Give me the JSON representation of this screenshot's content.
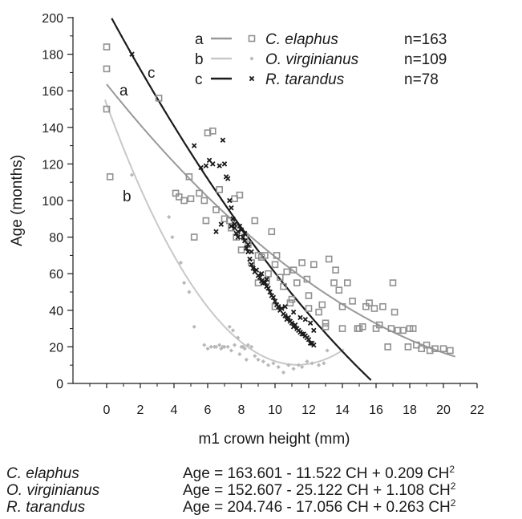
{
  "chart_data": {
    "type": "scatter",
    "xlabel": "m1 crown height (mm)",
    "ylabel": "Age (months)",
    "xlim": [
      -2,
      22
    ],
    "ylim": [
      0,
      200
    ],
    "x_ticks": [
      "0",
      "2",
      "4",
      "6",
      "8",
      "10",
      "12",
      "14",
      "16",
      "18",
      "20",
      "22"
    ],
    "y_ticks": [
      "0",
      "20",
      "40",
      "60",
      "80",
      "100",
      "120",
      "140",
      "160",
      "180",
      "200"
    ],
    "legend_position": "top-right",
    "series": [
      {
        "key": "a",
        "name": "C. elaphus",
        "n": "n=163",
        "marker": "hollow-square",
        "line_color": "#999999",
        "marker_color": "#909090",
        "curve": {
          "intercept": 163.601,
          "b1": -11.522,
          "b2": 0.209,
          "x_range": [
            0,
            20.7
          ]
        },
        "points": [
          [
            0,
            184
          ],
          [
            0,
            172
          ],
          [
            0,
            150
          ],
          [
            0.2,
            113
          ],
          [
            3.1,
            156
          ],
          [
            4.1,
            104
          ],
          [
            4.3,
            102
          ],
          [
            4.6,
            100
          ],
          [
            4.9,
            113
          ],
          [
            5,
            101
          ],
          [
            5.2,
            80
          ],
          [
            5.5,
            104
          ],
          [
            5.8,
            100
          ],
          [
            5.9,
            89
          ],
          [
            6,
            137
          ],
          [
            6.3,
            138
          ],
          [
            6.5,
            95
          ],
          [
            6.7,
            106
          ],
          [
            7,
            90
          ],
          [
            7.3,
            89
          ],
          [
            7.4,
            85
          ],
          [
            7.6,
            101
          ],
          [
            7.7,
            80
          ],
          [
            7.9,
            103
          ],
          [
            8,
            73
          ],
          [
            8.2,
            80
          ],
          [
            8.4,
            76
          ],
          [
            8.6,
            66
          ],
          [
            8.8,
            89
          ],
          [
            9,
            70
          ],
          [
            9.2,
            69
          ],
          [
            9.4,
            70
          ],
          [
            9.5,
            56
          ],
          [
            9.6,
            60
          ],
          [
            9.8,
            83
          ],
          [
            10,
            65
          ],
          [
            10.1,
            70
          ],
          [
            10.3,
            58
          ],
          [
            10.5,
            53
          ],
          [
            10.7,
            61
          ],
          [
            10.9,
            44
          ],
          [
            11.1,
            62
          ],
          [
            11.3,
            55
          ],
          [
            11.6,
            66
          ],
          [
            11.9,
            57
          ],
          [
            12,
            48
          ],
          [
            12.3,
            65
          ],
          [
            12.6,
            39
          ],
          [
            12.8,
            43
          ],
          [
            13,
            33
          ],
          [
            13.2,
            68
          ],
          [
            13.5,
            55
          ],
          [
            13.6,
            62
          ],
          [
            13.8,
            51
          ],
          [
            14,
            42
          ],
          [
            14.3,
            55
          ],
          [
            14.6,
            45
          ],
          [
            14.9,
            30
          ],
          [
            15.2,
            31
          ],
          [
            15.4,
            42
          ],
          [
            15.6,
            44
          ],
          [
            15.9,
            41
          ],
          [
            16.2,
            32
          ],
          [
            16.4,
            42
          ],
          [
            16.7,
            20
          ],
          [
            16.9,
            30
          ],
          [
            17.1,
            39
          ],
          [
            17.3,
            29
          ],
          [
            17.6,
            29
          ],
          [
            17.9,
            20
          ],
          [
            18.2,
            30
          ],
          [
            18.4,
            21
          ],
          [
            18.7,
            19
          ],
          [
            19,
            21
          ],
          [
            19.2,
            18
          ],
          [
            19.5,
            19
          ],
          [
            20,
            19
          ],
          [
            20.4,
            18
          ],
          [
            17,
            55
          ],
          [
            18,
            30
          ],
          [
            16,
            30
          ],
          [
            15,
            30
          ],
          [
            14,
            30
          ],
          [
            13,
            31
          ],
          [
            12,
            41
          ],
          [
            11,
            46
          ],
          [
            10,
            42
          ],
          [
            9,
            55
          ]
        ]
      },
      {
        "key": "b",
        "name": "O. virginianus",
        "n": "n=109",
        "marker": "small-diamond",
        "line_color": "#c8c8c8",
        "marker_color": "#b8b8b8",
        "curve": {
          "intercept": 152.607,
          "b1": -25.122,
          "b2": 1.108,
          "x_range": [
            -0.1,
            14.1
          ]
        },
        "points": [
          [
            1.5,
            114
          ],
          [
            3.7,
            91
          ],
          [
            3.9,
            80
          ],
          [
            4.4,
            66
          ],
          [
            4.6,
            55
          ],
          [
            4.9,
            50
          ],
          [
            5.2,
            31
          ],
          [
            6.2,
            20
          ],
          [
            6.5,
            20
          ],
          [
            6.8,
            19
          ],
          [
            7,
            20
          ],
          [
            7.3,
            31
          ],
          [
            7.5,
            29
          ],
          [
            7.8,
            25
          ],
          [
            8,
            20
          ],
          [
            8.2,
            19
          ],
          [
            8.4,
            21
          ],
          [
            8.6,
            20
          ],
          [
            8.8,
            15
          ],
          [
            9,
            13
          ],
          [
            9.3,
            12
          ],
          [
            9.6,
            10
          ],
          [
            9.9,
            11
          ],
          [
            10.2,
            9
          ],
          [
            10.5,
            6
          ],
          [
            10.8,
            10
          ],
          [
            11.1,
            8
          ],
          [
            11.4,
            10
          ],
          [
            11.6,
            9
          ],
          [
            11.9,
            12
          ],
          [
            12.2,
            11
          ],
          [
            12.6,
            10
          ],
          [
            12.9,
            11
          ],
          [
            13.1,
            18
          ],
          [
            7.2,
            20
          ],
          [
            7.6,
            21
          ],
          [
            7.9,
            16
          ],
          [
            8.1,
            20
          ],
          [
            8.3,
            13
          ],
          [
            7.4,
            18
          ],
          [
            6.9,
            20
          ],
          [
            6.7,
            21
          ],
          [
            6.4,
            20
          ],
          [
            5.8,
            21
          ],
          [
            6,
            19
          ]
        ]
      },
      {
        "key": "c",
        "name": "R. tarandus",
        "n": "n=78",
        "marker": "x",
        "line_color": "#1a1a1a",
        "marker_color": "#1a1a1a",
        "curve": {
          "intercept": 204.746,
          "b1": -17.056,
          "b2": 0.263,
          "x_range": [
            0.3,
            15.7
          ]
        },
        "points": [
          [
            1.5,
            180
          ],
          [
            5.2,
            130
          ],
          [
            5.6,
            118
          ],
          [
            5.9,
            119
          ],
          [
            6.1,
            122
          ],
          [
            6.3,
            120
          ],
          [
            6.7,
            119
          ],
          [
            6.9,
            133
          ],
          [
            7,
            120
          ],
          [
            7.1,
            113
          ],
          [
            7.2,
            112
          ],
          [
            7.3,
            100
          ],
          [
            7.4,
            96
          ],
          [
            7.5,
            90
          ],
          [
            7.6,
            87
          ],
          [
            7.7,
            82
          ],
          [
            7.8,
            83
          ],
          [
            7.9,
            86
          ],
          [
            8,
            84
          ],
          [
            8.1,
            80
          ],
          [
            8.2,
            78
          ],
          [
            8.3,
            74
          ],
          [
            8.4,
            72
          ],
          [
            8.5,
            68
          ],
          [
            8.6,
            65
          ],
          [
            8.7,
            63
          ],
          [
            8.8,
            61
          ],
          [
            8.9,
            62
          ],
          [
            9,
            59
          ],
          [
            9.1,
            58
          ],
          [
            9.2,
            56
          ],
          [
            9.3,
            55
          ],
          [
            9.4,
            55
          ],
          [
            9.5,
            53
          ],
          [
            9.6,
            52
          ],
          [
            9.7,
            50
          ],
          [
            9.8,
            48
          ],
          [
            9.9,
            47
          ],
          [
            10,
            45
          ],
          [
            10.1,
            43
          ],
          [
            10.2,
            42
          ],
          [
            10.3,
            40
          ],
          [
            10.4,
            41
          ],
          [
            10.5,
            38
          ],
          [
            10.6,
            37
          ],
          [
            10.7,
            35
          ],
          [
            10.8,
            36
          ],
          [
            10.9,
            34
          ],
          [
            11,
            33
          ],
          [
            11.1,
            31
          ],
          [
            11.2,
            32
          ],
          [
            11.3,
            30
          ],
          [
            11.4,
            29
          ],
          [
            11.5,
            28
          ],
          [
            11.6,
            27
          ],
          [
            11.7,
            27
          ],
          [
            11.8,
            26
          ],
          [
            11.9,
            25
          ],
          [
            12,
            24
          ],
          [
            12.1,
            22
          ],
          [
            12.2,
            22
          ],
          [
            12.3,
            21
          ],
          [
            6.5,
            83
          ],
          [
            6.8,
            87
          ],
          [
            7.4,
            86
          ],
          [
            7.6,
            85
          ],
          [
            7.8,
            80
          ],
          [
            8.2,
            82
          ],
          [
            8.4,
            76
          ],
          [
            8.6,
            72
          ],
          [
            9.2,
            60
          ],
          [
            9.5,
            57
          ],
          [
            10.6,
            42
          ],
          [
            11.1,
            39
          ],
          [
            11.5,
            36
          ],
          [
            11.8,
            35
          ],
          [
            12.1,
            33
          ],
          [
            12.3,
            29
          ]
        ]
      }
    ]
  },
  "equations": [
    {
      "species": "C. elaphus",
      "formula": "Age = 163.601 - 11.522 CH + 0.209 CH",
      "exp": "2"
    },
    {
      "species": "O. virginianus",
      "formula": "Age = 152.607 - 25.122 CH + 1.108 CH",
      "exp": "2"
    },
    {
      "species": "R. tarandus",
      "formula": "Age = 204.746 - 17.056 CH + 0.263 CH",
      "exp": "2"
    }
  ]
}
